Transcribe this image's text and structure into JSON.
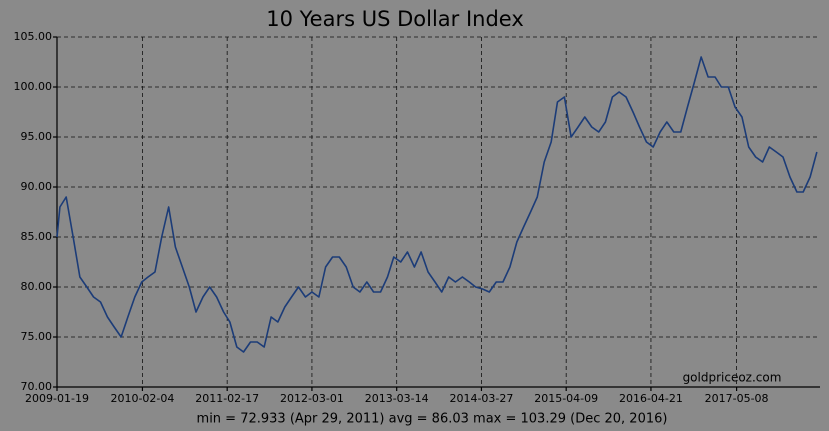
{
  "chart_data": {
    "type": "line",
    "title": "10 Years US Dollar Index",
    "annotations": [
      "goldpriceoz.com",
      "min = 72.933 (Apr 29, 2011)  avg = 86.03  max = 103.29 (Dec 20, 2016)"
    ],
    "color": "#1c3c78",
    "grid": true,
    "xlim": [
      "2009-01-19",
      "2018-05-15"
    ],
    "xticks": [
      "2009-01-19",
      "2010-02-04",
      "2011-02-17",
      "2012-03-01",
      "2013-03-14",
      "2014-03-27",
      "2015-04-09",
      "2016-04-21",
      "2017-05-08"
    ],
    "ylim": [
      70,
      105
    ],
    "yticks": [
      {
        "value": 70,
        "label": "70.00"
      },
      {
        "value": 75,
        "label": "75.00"
      },
      {
        "value": 80,
        "label": "80.00"
      },
      {
        "value": 85,
        "label": "85.00"
      },
      {
        "value": 90,
        "label": "90.00"
      },
      {
        "value": 95,
        "label": "95.00"
      },
      {
        "value": 100,
        "label": "100.00"
      },
      {
        "value": 105,
        "label": "105.00"
      }
    ],
    "x": [
      "2009-01-19",
      "2009-02-01",
      "2009-03-01",
      "2009-04-01",
      "2009-05-01",
      "2009-06-01",
      "2009-07-01",
      "2009-08-01",
      "2009-09-01",
      "2009-10-01",
      "2009-11-01",
      "2009-12-01",
      "2010-01-01",
      "2010-02-01",
      "2010-03-01",
      "2010-04-01",
      "2010-05-01",
      "2010-06-01",
      "2010-07-01",
      "2010-08-01",
      "2010-09-01",
      "2010-10-01",
      "2010-11-01",
      "2010-12-01",
      "2011-01-01",
      "2011-02-01",
      "2011-03-01",
      "2011-04-01",
      "2011-05-01",
      "2011-06-01",
      "2011-07-01",
      "2011-08-01",
      "2011-09-01",
      "2011-10-01",
      "2011-11-01",
      "2011-12-01",
      "2012-01-01",
      "2012-02-01",
      "2012-03-01",
      "2012-04-01",
      "2012-05-01",
      "2012-06-01",
      "2012-07-01",
      "2012-08-01",
      "2012-09-01",
      "2012-10-01",
      "2012-11-01",
      "2012-12-01",
      "2013-01-01",
      "2013-02-01",
      "2013-03-01",
      "2013-04-01",
      "2013-05-01",
      "2013-06-01",
      "2013-07-01",
      "2013-08-01",
      "2013-09-01",
      "2013-10-01",
      "2013-11-01",
      "2013-12-01",
      "2014-01-01",
      "2014-02-01",
      "2014-03-01",
      "2014-04-01",
      "2014-05-01",
      "2014-06-01",
      "2014-07-01",
      "2014-08-01",
      "2014-09-01",
      "2014-10-01",
      "2014-11-01",
      "2014-12-01",
      "2015-01-01",
      "2015-02-01",
      "2015-03-01",
      "2015-04-01",
      "2015-05-01",
      "2015-06-01",
      "2015-07-01",
      "2015-08-01",
      "2015-09-01",
      "2015-10-01",
      "2015-11-01",
      "2015-12-01",
      "2016-01-01",
      "2016-02-01",
      "2016-03-01",
      "2016-04-01",
      "2016-05-01",
      "2016-06-01",
      "2016-07-01",
      "2016-08-01",
      "2016-09-01",
      "2016-10-01",
      "2016-11-01",
      "2016-12-01",
      "2017-01-01",
      "2017-02-01",
      "2017-03-01",
      "2017-04-01",
      "2017-05-01",
      "2017-06-01",
      "2017-07-01",
      "2017-08-01",
      "2017-09-01",
      "2017-10-01",
      "2017-11-01",
      "2017-12-01",
      "2018-01-01",
      "2018-02-01",
      "2018-03-01",
      "2018-04-01",
      "2018-05-01"
    ],
    "values": [
      85,
      88,
      89,
      85,
      81,
      80,
      79,
      78.5,
      77,
      76,
      75,
      77,
      79,
      80.5,
      81,
      81.5,
      85,
      88,
      84,
      82,
      80,
      77.5,
      79,
      80,
      79,
      77.5,
      76.5,
      74,
      73.5,
      74.5,
      74.5,
      74,
      77,
      76.5,
      78,
      79,
      80,
      79,
      79.5,
      79,
      82,
      83,
      83,
      82,
      80,
      79.5,
      80.5,
      79.5,
      79.5,
      81,
      83,
      82.5,
      83.5,
      82,
      83.5,
      81.5,
      80.5,
      79.5,
      81,
      80.5,
      81,
      80.5,
      80,
      79.8,
      79.5,
      80.5,
      80.5,
      82,
      84.5,
      86,
      87.5,
      89,
      92.5,
      94.5,
      98.5,
      99,
      95,
      96,
      97,
      96,
      95.5,
      96.5,
      99,
      99.5,
      99,
      97.5,
      96,
      94.5,
      94,
      95.5,
      96.5,
      95.5,
      95.5,
      98,
      100.5,
      103,
      101,
      101,
      100,
      100,
      98,
      97,
      94,
      93,
      92.5,
      94,
      93.5,
      93,
      91,
      89.5,
      89.5,
      91,
      93.5
    ]
  }
}
